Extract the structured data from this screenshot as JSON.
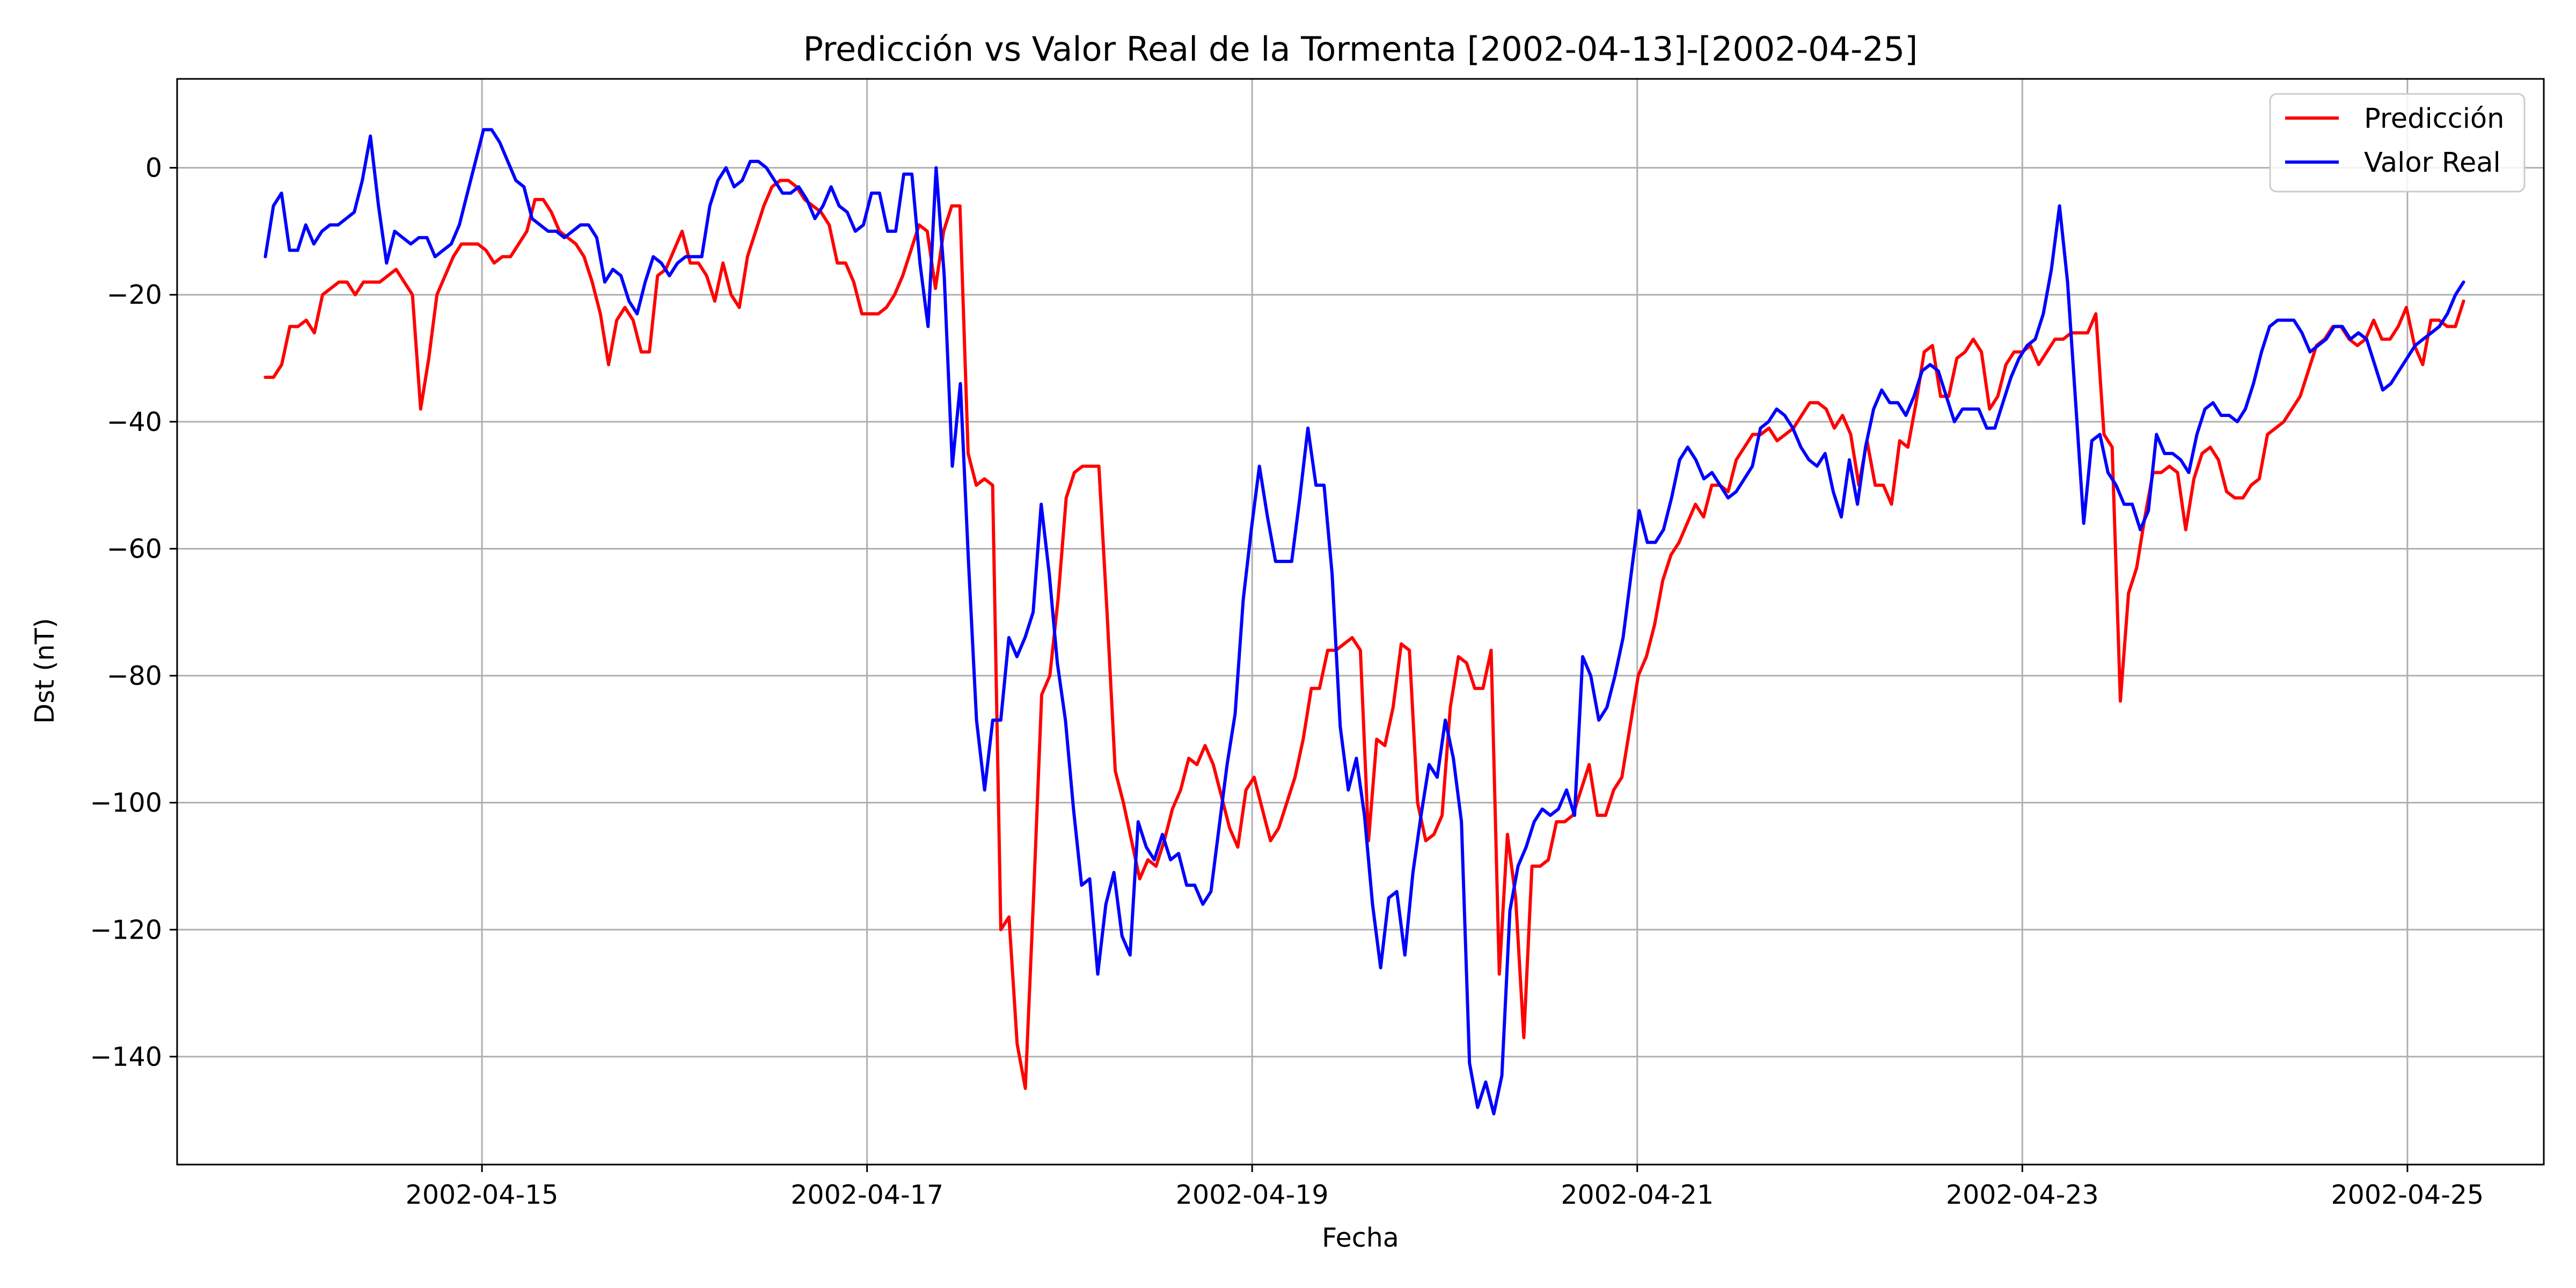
{
  "chart_data": {
    "type": "line",
    "title": "Predicción vs Valor Real de la Tormenta [2002-04-13]-[2002-04-25]",
    "xlabel": "Fecha",
    "ylabel": "Dst (nT)",
    "x_start": "2002-04-13T21:00",
    "x_end": "2002-04-25T07:00",
    "xlim": [
      "2002-04-13T10:00",
      "2002-04-25T17:00"
    ],
    "ylim": [
      -157,
      14
    ],
    "x_ticks": [
      "2002-04-15",
      "2002-04-17",
      "2002-04-19",
      "2002-04-21",
      "2002-04-23",
      "2002-04-25"
    ],
    "y_ticks": [
      0,
      -20,
      -40,
      -60,
      -80,
      -100,
      -120,
      -140
    ],
    "grid": true,
    "legend": "top-right",
    "series": [
      {
        "name": "Predicción",
        "color": "#ff0000",
        "values": [
          -33,
          -33,
          -31,
          -25,
          -25,
          -24,
          -26,
          -20,
          -19,
          -18,
          -18,
          -20,
          -18,
          -18,
          -18,
          -17,
          -16,
          -18,
          -20,
          -38,
          -30,
          -20,
          -17,
          -14,
          -12,
          -12,
          -12,
          -13,
          -15,
          -14,
          -14,
          -12,
          -10,
          -5,
          -5,
          -7,
          -10,
          -11,
          -12,
          -14,
          -18,
          -23,
          -31,
          -24,
          -22,
          -24,
          -29,
          -29,
          -17,
          -16,
          -13,
          -10,
          -15,
          -15,
          -17,
          -21,
          -15,
          -20,
          -22,
          -14,
          -10,
          -6,
          -3,
          -2,
          -2,
          -3,
          -5,
          -6,
          -7,
          -9,
          -15,
          -15,
          -18,
          -23,
          -23,
          -23,
          -22,
          -20,
          -17,
          -13,
          -9,
          -10,
          -19,
          -10,
          -6,
          -6,
          -45,
          -50,
          -49,
          -50,
          -120,
          -118,
          -138,
          -145,
          -115,
          -83,
          -80,
          -68,
          -52,
          -48,
          -47,
          -47,
          -47,
          -70,
          -95,
          -100,
          -106,
          -112,
          -109,
          -110,
          -106,
          -101,
          -98,
          -93,
          -94,
          -91,
          -94,
          -99,
          -104,
          -107,
          -98,
          -96,
          -101,
          -106,
          -104,
          -100,
          -96,
          -90,
          -82,
          -82,
          -76,
          -76,
          -75,
          -74,
          -76,
          -106,
          -90,
          -91,
          -85,
          -75,
          -76,
          -100,
          -106,
          -105,
          -102,
          -85,
          -77,
          -78,
          -82,
          -82,
          -76,
          -127,
          -105,
          -115,
          -137,
          -110,
          -110,
          -109,
          -103,
          -103,
          -102,
          -98,
          -94,
          -102,
          -102,
          -98,
          -96,
          -88,
          -80,
          -77,
          -72,
          -65,
          -61,
          -59,
          -56,
          -53,
          -55,
          -50,
          -50,
          -51,
          -46,
          -44,
          -42,
          -42,
          -41,
          -43,
          -42,
          -41,
          -39,
          -37,
          -37,
          -38,
          -41,
          -39,
          -42,
          -50,
          -43,
          -50,
          -50,
          -53,
          -43,
          -44,
          -37,
          -29,
          -28,
          -36,
          -36,
          -30,
          -29,
          -27,
          -29,
          -38,
          -36,
          -31,
          -29,
          -29,
          -28,
          -31,
          -29,
          -27,
          -27,
          -26,
          -26,
          -26,
          -23,
          -42,
          -44,
          -84,
          -67,
          -63,
          -55,
          -48,
          -48,
          -47,
          -48,
          -57,
          -49,
          -45,
          -44,
          -46,
          -51,
          -52,
          -52,
          -50,
          -49,
          -42,
          -41,
          -40,
          -38,
          -36,
          -32,
          -28,
          -27,
          -25,
          -25,
          -27,
          -28,
          -27,
          -24,
          -27,
          -27,
          -25,
          -22,
          -28,
          -31,
          -24,
          -24,
          -25,
          -25,
          -21
        ]
      },
      {
        "name": "Valor Real",
        "color": "#0000ff",
        "values": [
          -14,
          -6,
          -4,
          -13,
          -13,
          -9,
          -12,
          -10,
          -9,
          -9,
          -8,
          -7,
          -2,
          5,
          -6,
          -15,
          -10,
          -11,
          -12,
          -11,
          -11,
          -14,
          -13,
          -12,
          -9,
          -4,
          1,
          6,
          6,
          4,
          1,
          -2,
          -3,
          -8,
          -9,
          -10,
          -10,
          -11,
          -10,
          -9,
          -9,
          -11,
          -18,
          -16,
          -17,
          -21,
          -23,
          -18,
          -14,
          -15,
          -17,
          -15,
          -14,
          -14,
          -14,
          -6,
          -2,
          0,
          -3,
          -2,
          1,
          1,
          0,
          -2,
          -4,
          -4,
          -3,
          -5,
          -8,
          -6,
          -3,
          -6,
          -7,
          -10,
          -9,
          -4,
          -4,
          -10,
          -10,
          -1,
          -1,
          -15,
          -25,
          0,
          -17,
          -47,
          -34,
          -62,
          -87,
          -98,
          -87,
          -87,
          -74,
          -77,
          -74,
          -70,
          -53,
          -64,
          -78,
          -87,
          -101,
          -113,
          -112,
          -127,
          -116,
          -111,
          -121,
          -124,
          -103,
          -107,
          -109,
          -105,
          -109,
          -108,
          -113,
          -113,
          -116,
          -114,
          -104,
          -94,
          -86,
          -68,
          -57,
          -47,
          -55,
          -62,
          -62,
          -62,
          -52,
          -41,
          -50,
          -50,
          -64,
          -88,
          -98,
          -93,
          -102,
          -116,
          -126,
          -115,
          -114,
          -124,
          -111,
          -102,
          -94,
          -96,
          -87,
          -93,
          -103,
          -141,
          -148,
          -144,
          -149,
          -143,
          -117,
          -110,
          -107,
          -103,
          -101,
          -102,
          -101,
          -98,
          -102,
          -77,
          -80,
          -87,
          -85,
          -80,
          -74,
          -64,
          -54,
          -59,
          -59,
          -57,
          -52,
          -46,
          -44,
          -46,
          -49,
          -48,
          -50,
          -52,
          -51,
          -49,
          -47,
          -41,
          -40,
          -38,
          -39,
          -41,
          -44,
          -46,
          -47,
          -45,
          -51,
          -55,
          -46,
          -53,
          -44,
          -38,
          -35,
          -37,
          -37,
          -39,
          -36,
          -32,
          -31,
          -32,
          -36,
          -40,
          -38,
          -38,
          -38,
          -41,
          -41,
          -37,
          -33,
          -30,
          -28,
          -27,
          -23,
          -16,
          -6,
          -18,
          -37,
          -56,
          -43,
          -42,
          -48,
          -50,
          -53,
          -53,
          -57,
          -54,
          -42,
          -45,
          -45,
          -46,
          -48,
          -42,
          -38,
          -37,
          -39,
          -39,
          -40,
          -38,
          -34,
          -29,
          -25,
          -24,
          -24,
          -24,
          -26,
          -29,
          -28,
          -27,
          -25,
          -25,
          -27,
          -26,
          -27,
          -31,
          -35,
          -34,
          -32,
          -30,
          -28,
          -27,
          -26,
          -25,
          -23,
          -20,
          -18
        ]
      }
    ]
  }
}
